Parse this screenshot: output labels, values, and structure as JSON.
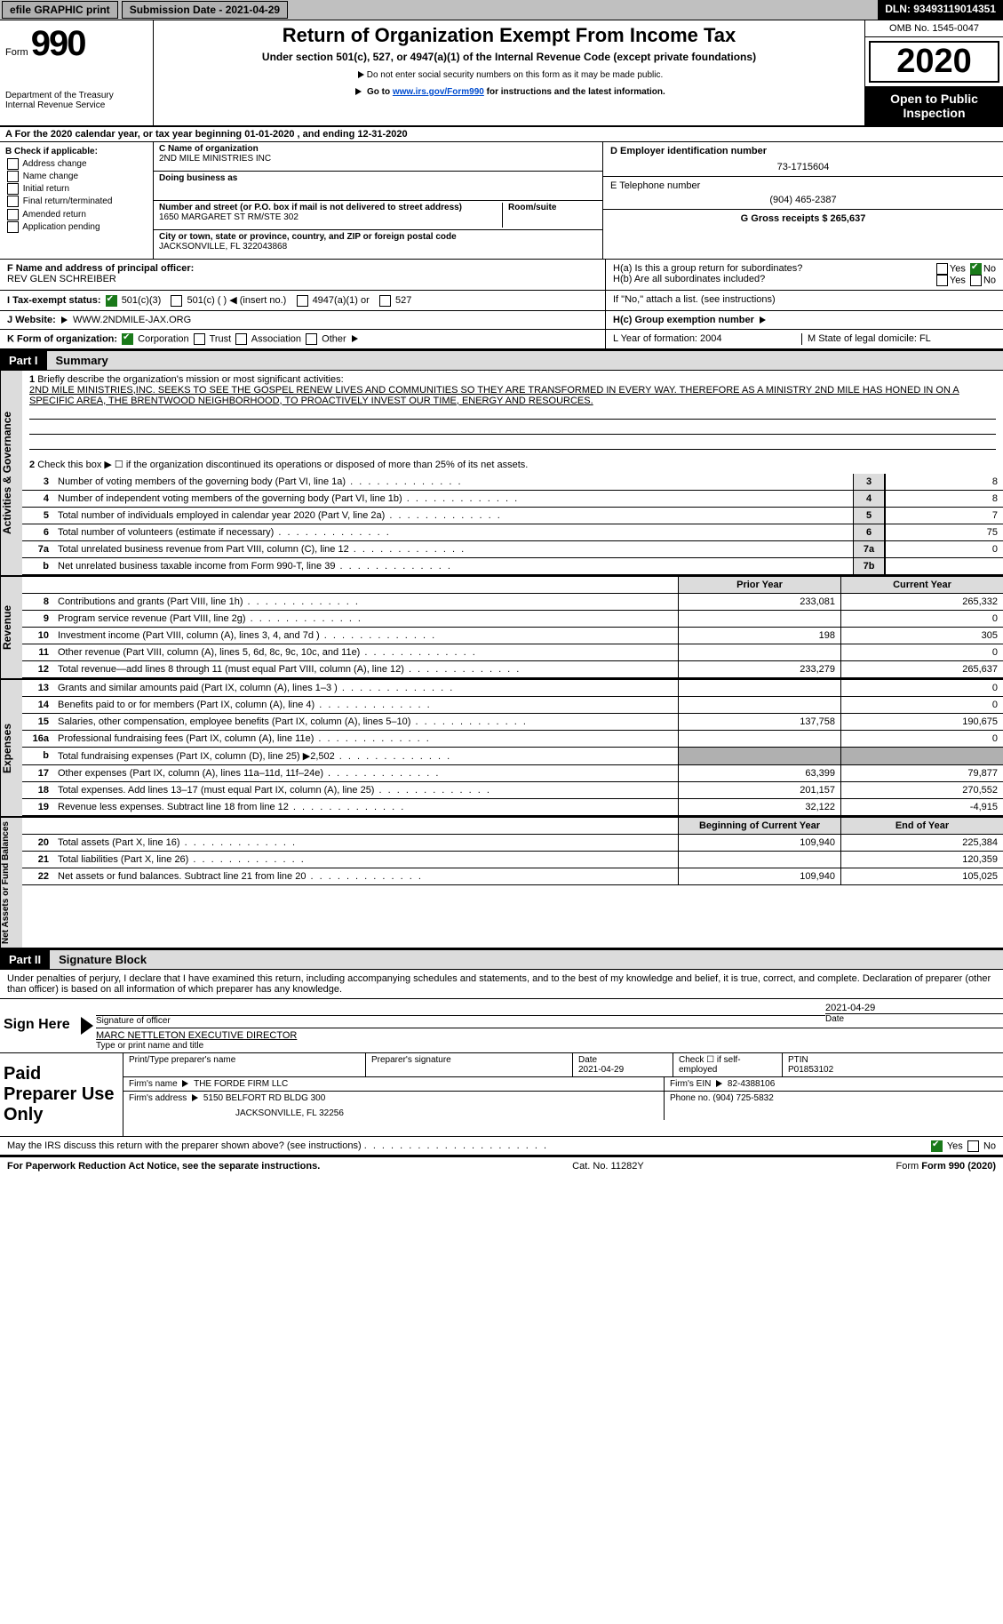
{
  "topbar": {
    "efile": "efile GRAPHIC print",
    "submission_label": "Submission Date - 2021-04-29",
    "dln": "DLN: 93493119014351"
  },
  "header": {
    "form_label": "Form",
    "form_number": "990",
    "department": "Department of the Treasury\nInternal Revenue Service",
    "title": "Return of Organization Exempt From Income Tax",
    "subtitle": "Under section 501(c), 527, or 4947(a)(1) of the Internal Revenue Code (except private foundations)",
    "note1": "Do not enter social security numbers on this form as it may be made public.",
    "note2_pre": "Go to ",
    "note2_link": "www.irs.gov/Form990",
    "note2_post": " for instructions and the latest information.",
    "omb": "OMB No. 1545-0047",
    "year": "2020",
    "open_public": "Open to Public Inspection"
  },
  "lineA": "For the 2020 calendar year, or tax year beginning 01-01-2020    , and ending 12-31-2020",
  "boxB": {
    "title": "B Check if applicable:",
    "items": [
      "Address change",
      "Name change",
      "Initial return",
      "Final return/terminated",
      "Amended return",
      "Application pending"
    ]
  },
  "boxC": {
    "name_label": "C Name of organization",
    "name": "2ND MILE MINISTRIES INC",
    "dba_label": "Doing business as",
    "addr_label": "Number and street (or P.O. box if mail is not delivered to street address)",
    "room_label": "Room/suite",
    "addr": "1650 MARGARET ST RM/STE 302",
    "city_label": "City or town, state or province, country, and ZIP or foreign postal code",
    "city": "JACKSONVILLE, FL  322043868"
  },
  "boxD": {
    "label": "D Employer identification number",
    "value": "73-1715604"
  },
  "boxE": {
    "label": "E Telephone number",
    "value": "(904) 465-2387"
  },
  "boxG": {
    "label": "G Gross receipts $ 265,637"
  },
  "officer": {
    "label": "F  Name and address of principal officer:",
    "name": "REV GLEN SCHREIBER"
  },
  "boxH": {
    "a": "H(a)  Is this a group return for subordinates?",
    "b": "H(b)  Are all subordinates included?",
    "note": "If \"No,\" attach a list. (see instructions)",
    "c_label": "H(c)  Group exemption number",
    "yes": "Yes",
    "no": "No"
  },
  "taxI": {
    "label": "I   Tax-exempt status:",
    "o1": "501(c)(3)",
    "o2": "501(c) (  )",
    "o2_note": "(insert no.)",
    "o3": "4947(a)(1) or",
    "o4": "527"
  },
  "lineJ": {
    "label": "J   Website:",
    "value": "WWW.2NDMILE-JAX.ORG"
  },
  "lineK": {
    "label": "K Form of organization:",
    "opts": [
      "Corporation",
      "Trust",
      "Association",
      "Other"
    ]
  },
  "lineL": "L Year of formation: 2004",
  "lineM": "M State of legal domicile: FL",
  "part1": {
    "header": "Part I",
    "title": "Summary",
    "q1_label": "1",
    "q1": "Briefly describe the organization's mission or most significant activities:",
    "mission": "2ND MILE MINISTRIES,INC. SEEKS TO SEE THE GOSPEL RENEW LIVES AND COMMUNITIES SO THEY ARE TRANSFORMED IN EVERY WAY. THEREFORE AS A MINISTRY 2ND MILE HAS HONED IN ON A SPECIFIC AREA, THE BRENTWOOD NEIGHBORHOOD, TO PROACTIVELY INVEST OUR TIME, ENERGY AND RESOURCES.",
    "q2": "Check this box ▶ ☐  if the organization discontinued its operations or disposed of more than 25% of its net assets.",
    "rows_gov": [
      {
        "n": "3",
        "d": "Number of voting members of the governing body (Part VI, line 1a)",
        "box": "3",
        "v": "8"
      },
      {
        "n": "4",
        "d": "Number of independent voting members of the governing body (Part VI, line 1b)",
        "box": "4",
        "v": "8"
      },
      {
        "n": "5",
        "d": "Total number of individuals employed in calendar year 2020 (Part V, line 2a)",
        "box": "5",
        "v": "7"
      },
      {
        "n": "6",
        "d": "Total number of volunteers (estimate if necessary)",
        "box": "6",
        "v": "75"
      },
      {
        "n": "7a",
        "d": "Total unrelated business revenue from Part VIII, column (C), line 12",
        "box": "7a",
        "v": "0"
      },
      {
        "n": "b",
        "d": "Net unrelated business taxable income from Form 990-T, line 39",
        "box": "7b",
        "v": ""
      }
    ],
    "col_headers": {
      "prior": "Prior Year",
      "current": "Current Year",
      "begin": "Beginning of Current Year",
      "end": "End of Year"
    },
    "revenue_label": "Revenue",
    "expenses_label": "Expenses",
    "gov_label": "Activities & Governance",
    "netassets_label": "Net Assets or Fund Balances",
    "rows_rev": [
      {
        "n": "8",
        "d": "Contributions and grants (Part VIII, line 1h)",
        "p": "233,081",
        "c": "265,332"
      },
      {
        "n": "9",
        "d": "Program service revenue (Part VIII, line 2g)",
        "p": "",
        "c": "0"
      },
      {
        "n": "10",
        "d": "Investment income (Part VIII, column (A), lines 3, 4, and 7d )",
        "p": "198",
        "c": "305"
      },
      {
        "n": "11",
        "d": "Other revenue (Part VIII, column (A), lines 5, 6d, 8c, 9c, 10c, and 11e)",
        "p": "",
        "c": "0"
      },
      {
        "n": "12",
        "d": "Total revenue—add lines 8 through 11 (must equal Part VIII, column (A), line 12)",
        "p": "233,279",
        "c": "265,637"
      }
    ],
    "rows_exp": [
      {
        "n": "13",
        "d": "Grants and similar amounts paid (Part IX, column (A), lines 1–3 )",
        "p": "",
        "c": "0"
      },
      {
        "n": "14",
        "d": "Benefits paid to or for members (Part IX, column (A), line 4)",
        "p": "",
        "c": "0"
      },
      {
        "n": "15",
        "d": "Salaries, other compensation, employee benefits (Part IX, column (A), lines 5–10)",
        "p": "137,758",
        "c": "190,675"
      },
      {
        "n": "16a",
        "d": "Professional fundraising fees (Part IX, column (A), line 11e)",
        "p": "",
        "c": "0"
      },
      {
        "n": "b",
        "d": "Total fundraising expenses (Part IX, column (D), line 25) ▶2,502",
        "p": "grey",
        "c": "grey"
      },
      {
        "n": "17",
        "d": "Other expenses (Part IX, column (A), lines 11a–11d, 11f–24e)",
        "p": "63,399",
        "c": "79,877"
      },
      {
        "n": "18",
        "d": "Total expenses. Add lines 13–17 (must equal Part IX, column (A), line 25)",
        "p": "201,157",
        "c": "270,552"
      },
      {
        "n": "19",
        "d": "Revenue less expenses. Subtract line 18 from line 12",
        "p": "32,122",
        "c": "-4,915"
      }
    ],
    "rows_bal": [
      {
        "n": "20",
        "d": "Total assets (Part X, line 16)",
        "p": "109,940",
        "c": "225,384"
      },
      {
        "n": "21",
        "d": "Total liabilities (Part X, line 26)",
        "p": "",
        "c": "120,359"
      },
      {
        "n": "22",
        "d": "Net assets or fund balances. Subtract line 21 from line 20",
        "p": "109,940",
        "c": "105,025"
      }
    ]
  },
  "part2": {
    "header": "Part II",
    "title": "Signature Block",
    "perjury": "Under penalties of perjury, I declare that I have examined this return, including accompanying schedules and statements, and to the best of my knowledge and belief, it is true, correct, and complete. Declaration of preparer (other than officer) is based on all information of which preparer has any knowledge.",
    "sign_here": "Sign Here",
    "sig_officer": "Signature of officer",
    "date": "Date",
    "officer_date": "2021-04-29",
    "officer_name": "MARC NETTLETON  EXECUTIVE DIRECTOR",
    "type_name": "Type or print name and title"
  },
  "preparer": {
    "label": "Paid Preparer Use Only",
    "h_print": "Print/Type preparer's name",
    "h_sig": "Preparer's signature",
    "h_date": "Date",
    "date": "2021-04-29",
    "h_check": "Check ☐ if self-employed",
    "h_ptin": "PTIN",
    "ptin": "P01853102",
    "firm_label": "Firm's name",
    "firm": "THE FORDE FIRM LLC",
    "ein_label": "Firm's EIN",
    "ein": "82-4388106",
    "addr_label": "Firm's address",
    "addr1": "5150 BELFORT RD BLDG 300",
    "addr2": "JACKSONVILLE, FL  32256",
    "phone_label": "Phone no.",
    "phone": "(904) 725-5832"
  },
  "bottom": {
    "discuss": "May the IRS discuss this return with the preparer shown above? (see instructions)",
    "yes": "Yes",
    "no": "No",
    "paperwork": "For Paperwork Reduction Act Notice, see the separate instructions.",
    "cat": "Cat. No. 11282Y",
    "form": "Form 990 (2020)"
  },
  "colors": {
    "grey": "#dcdcdc",
    "darkgrey": "#b0b0b0",
    "link": "#004ccf"
  }
}
